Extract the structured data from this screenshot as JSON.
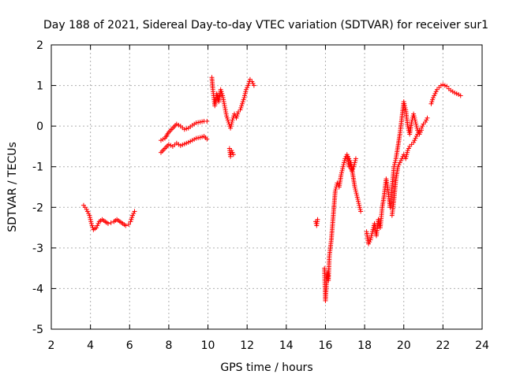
{
  "chart_data": {
    "type": "scatter",
    "title": "Day 188 of 2021, Sidereal Day-to-day VTEC variation (SDTVAR) for receiver sur1",
    "xlabel": "GPS time / hours",
    "ylabel": "SDTVAR / TECUs",
    "xlim": [
      2,
      24
    ],
    "ylim": [
      -5,
      2
    ],
    "xticks": [
      2,
      4,
      6,
      8,
      10,
      12,
      14,
      16,
      18,
      20,
      22,
      24
    ],
    "yticks": [
      -5,
      -4,
      -3,
      -2,
      -1,
      0,
      1,
      2
    ],
    "grid": true,
    "marker": "+",
    "color": "#ff0000",
    "segments": [
      {
        "name": "arc-a",
        "points": [
          [
            3.65,
            -1.95
          ],
          [
            3.8,
            -2.05
          ],
          [
            3.95,
            -2.2
          ],
          [
            4.05,
            -2.4
          ],
          [
            4.15,
            -2.55
          ],
          [
            4.3,
            -2.5
          ],
          [
            4.45,
            -2.35
          ],
          [
            4.6,
            -2.3
          ],
          [
            4.75,
            -2.35
          ],
          [
            4.9,
            -2.4
          ],
          [
            5.05,
            -2.38
          ],
          [
            5.2,
            -2.35
          ],
          [
            5.35,
            -2.3
          ],
          [
            5.5,
            -2.35
          ],
          [
            5.65,
            -2.4
          ],
          [
            5.8,
            -2.45
          ],
          [
            5.95,
            -2.42
          ],
          [
            6.05,
            -2.35
          ],
          [
            6.15,
            -2.2
          ],
          [
            6.25,
            -2.1
          ]
        ]
      },
      {
        "name": "arc-b",
        "points": [
          [
            7.6,
            -0.65
          ],
          [
            7.8,
            -0.55
          ],
          [
            8.0,
            -0.45
          ],
          [
            8.2,
            -0.5
          ],
          [
            8.4,
            -0.42
          ],
          [
            8.6,
            -0.48
          ],
          [
            8.8,
            -0.44
          ],
          [
            9.0,
            -0.4
          ],
          [
            9.2,
            -0.35
          ],
          [
            9.4,
            -0.3
          ],
          [
            9.6,
            -0.28
          ],
          [
            9.8,
            -0.25
          ],
          [
            9.95,
            -0.32
          ]
        ]
      },
      {
        "name": "arc-c",
        "points": [
          [
            7.6,
            -0.35
          ],
          [
            7.8,
            -0.3
          ],
          [
            8.0,
            -0.15
          ],
          [
            8.2,
            -0.05
          ],
          [
            8.4,
            0.05
          ],
          [
            8.6,
            0.0
          ],
          [
            8.8,
            -0.08
          ],
          [
            9.0,
            -0.05
          ],
          [
            9.2,
            0.02
          ],
          [
            9.4,
            0.08
          ],
          [
            9.6,
            0.1
          ],
          [
            9.8,
            0.12
          ],
          [
            9.95,
            0.12
          ]
        ]
      },
      {
        "name": "arc-d",
        "points": [
          [
            10.2,
            1.2
          ],
          [
            10.25,
            0.9
          ],
          [
            10.3,
            0.7
          ],
          [
            10.35,
            0.5
          ],
          [
            10.45,
            0.8
          ],
          [
            10.55,
            0.6
          ],
          [
            10.65,
            0.9
          ],
          [
            10.75,
            0.75
          ],
          [
            10.85,
            0.5
          ],
          [
            10.95,
            0.25
          ],
          [
            11.05,
            0.1
          ],
          [
            11.15,
            -0.05
          ],
          [
            11.25,
            0.15
          ],
          [
            11.35,
            0.3
          ],
          [
            11.45,
            0.2
          ],
          [
            11.55,
            0.35
          ],
          [
            11.65,
            0.4
          ],
          [
            11.75,
            0.55
          ],
          [
            11.85,
            0.7
          ],
          [
            11.95,
            0.9
          ],
          [
            12.05,
            1.0
          ],
          [
            12.15,
            1.15
          ],
          [
            12.25,
            1.1
          ],
          [
            12.35,
            1.0
          ]
        ]
      },
      {
        "name": "arc-e",
        "points": [
          [
            11.1,
            -0.55
          ],
          [
            11.15,
            -0.75
          ],
          [
            11.2,
            -0.6
          ],
          [
            11.25,
            -0.65
          ],
          [
            11.3,
            -0.7
          ]
        ]
      },
      {
        "name": "arc-f",
        "points": [
          [
            15.5,
            -2.35
          ],
          [
            15.55,
            -2.45
          ],
          [
            15.6,
            -2.3
          ]
        ]
      },
      {
        "name": "arc-g",
        "points": [
          [
            15.95,
            -3.5
          ],
          [
            16.0,
            -4.3
          ],
          [
            16.05,
            -3.9
          ],
          [
            16.1,
            -3.6
          ],
          [
            16.15,
            -3.8
          ],
          [
            16.2,
            -3.2
          ],
          [
            16.3,
            -2.8
          ],
          [
            16.4,
            -2.2
          ],
          [
            16.5,
            -1.6
          ],
          [
            16.6,
            -1.4
          ],
          [
            16.7,
            -1.5
          ],
          [
            16.8,
            -1.2
          ],
          [
            16.9,
            -1.0
          ],
          [
            17.0,
            -0.8
          ],
          [
            17.1,
            -0.7
          ],
          [
            17.2,
            -1.0
          ],
          [
            17.3,
            -0.9
          ],
          [
            17.4,
            -1.2
          ],
          [
            17.5,
            -1.5
          ],
          [
            17.6,
            -1.7
          ],
          [
            17.7,
            -1.9
          ],
          [
            17.8,
            -2.1
          ]
        ]
      },
      {
        "name": "arc-h",
        "points": [
          [
            17.15,
            -0.75
          ],
          [
            17.25,
            -0.85
          ],
          [
            17.35,
            -1.1
          ],
          [
            17.45,
            -1.0
          ],
          [
            17.55,
            -0.8
          ]
        ]
      },
      {
        "name": "arc-i",
        "points": [
          [
            18.1,
            -2.6
          ],
          [
            18.2,
            -2.9
          ],
          [
            18.3,
            -2.8
          ],
          [
            18.4,
            -2.6
          ],
          [
            18.5,
            -2.4
          ],
          [
            18.6,
            -2.7
          ],
          [
            18.7,
            -2.3
          ],
          [
            18.8,
            -2.5
          ],
          [
            18.9,
            -2.0
          ],
          [
            19.0,
            -1.7
          ],
          [
            19.1,
            -1.3
          ],
          [
            19.2,
            -1.6
          ],
          [
            19.3,
            -2.0
          ],
          [
            19.4,
            -1.5
          ],
          [
            19.5,
            -1.0
          ],
          [
            19.6,
            -0.8
          ],
          [
            19.7,
            -0.5
          ],
          [
            19.8,
            -0.2
          ],
          [
            19.9,
            0.2
          ],
          [
            20.0,
            0.6
          ],
          [
            20.1,
            0.4
          ],
          [
            20.2,
            0.0
          ],
          [
            20.3,
            -0.2
          ],
          [
            20.4,
            0.1
          ],
          [
            20.5,
            0.3
          ],
          [
            20.6,
            0.1
          ],
          [
            20.7,
            -0.1
          ],
          [
            20.8,
            -0.2
          ],
          [
            20.9,
            -0.1
          ]
        ]
      },
      {
        "name": "arc-j",
        "points": [
          [
            19.4,
            -2.2
          ],
          [
            19.5,
            -1.8
          ],
          [
            19.6,
            -1.3
          ],
          [
            19.7,
            -1.0
          ],
          [
            19.8,
            -0.9
          ],
          [
            19.9,
            -0.8
          ],
          [
            20.0,
            -0.7
          ],
          [
            20.1,
            -0.8
          ],
          [
            20.2,
            -0.6
          ],
          [
            20.3,
            -0.5
          ],
          [
            20.4,
            -0.45
          ],
          [
            20.5,
            -0.4
          ],
          [
            20.6,
            -0.3
          ],
          [
            20.7,
            -0.2
          ],
          [
            20.8,
            -0.1
          ],
          [
            20.9,
            -0.05
          ],
          [
            21.0,
            0.05
          ],
          [
            21.1,
            0.1
          ],
          [
            21.2,
            0.2
          ]
        ]
      },
      {
        "name": "arc-k",
        "points": [
          [
            21.4,
            0.55
          ],
          [
            21.5,
            0.7
          ],
          [
            21.6,
            0.8
          ],
          [
            21.7,
            0.9
          ],
          [
            21.8,
            0.95
          ],
          [
            21.9,
            1.0
          ],
          [
            22.0,
            1.02
          ],
          [
            22.1,
            1.0
          ],
          [
            22.2,
            0.98
          ],
          [
            22.3,
            0.92
          ],
          [
            22.4,
            0.88
          ],
          [
            22.5,
            0.85
          ],
          [
            22.6,
            0.82
          ],
          [
            22.7,
            0.8
          ],
          [
            22.8,
            0.78
          ],
          [
            22.9,
            0.75
          ]
        ]
      }
    ]
  }
}
